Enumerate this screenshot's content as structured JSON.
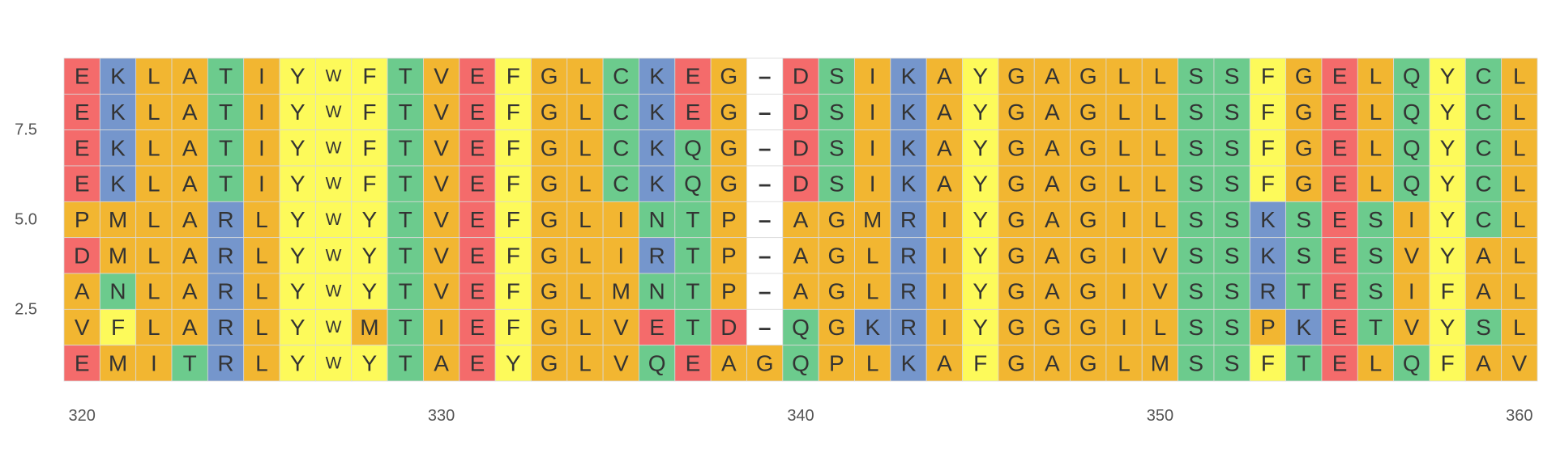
{
  "chart_data": {
    "type": "heatmap",
    "title": "",
    "xlabel": "",
    "ylabel": "",
    "x_ticks": [
      "320",
      "330",
      "340",
      "350",
      "360"
    ],
    "y_ticks": [
      "7.5",
      "5.0",
      "2.5"
    ],
    "x_range": [
      320,
      360
    ],
    "y_range": [
      0.5,
      9.5
    ],
    "grid": false,
    "sequences": [
      "EKLATIYWFTVEFGLCKEG-DSIKAYGAGLLSSFGELQYCL",
      "EKLATIYWFTVEFGLCKEG-DSIKAYGAGLLSSFGELQYCL",
      "EKLATIYWFTVEFGLCKQG-DSIKAYGAGLLSSFGELQYCL",
      "EKLATIYWFTVEFGLCKQG-DSIKAYGAGLLSSFGELQYCL",
      "PMLARLYWYTVEFGLINTP-AGMRIYGAGILSSKSESIYCL",
      "DMLARLYWYTVEFGLIRTP-AGLRIYGAGIVSSKSESVYAL",
      "ANLARLYWYTVEFGLMNTP-AGLRIYGAGIVSSRTESIFAL",
      "VFLARLYWMTIEFGLVETD-QGKRIYGGGILSSPKETVYSL",
      "EMITRLYWYTAEYGLVQEAGQPLKAFGAGLMSSFTELQFAV"
    ],
    "color_scheme": {
      "acidic": "#f46b6b",
      "basic": "#7596cc",
      "polar": "#6ccb8d",
      "hydrophobic": "#f2b631",
      "aromatic": "#fdfa5a",
      "gap": "#ffffff"
    },
    "residue_classes": {
      "D": "acidic",
      "E": "acidic",
      "K": "basic",
      "R": "basic",
      "H": "basic",
      "S": "polar",
      "T": "polar",
      "N": "polar",
      "Q": "polar",
      "C": "polar",
      "A": "hydrophobic",
      "G": "hydrophobic",
      "I": "hydrophobic",
      "L": "hydrophobic",
      "M": "hydrophobic",
      "P": "hydrophobic",
      "V": "hydrophobic",
      "F": "aromatic",
      "W": "aromatic",
      "Y": "aromatic",
      "-": "gap"
    }
  }
}
